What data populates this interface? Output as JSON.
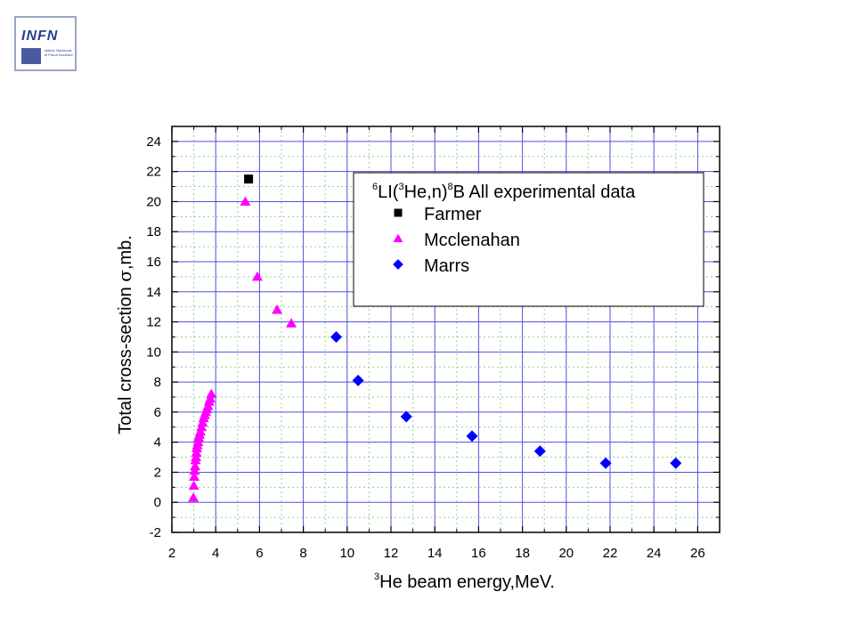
{
  "logo": {
    "word": "INFN",
    "subtitle_lines": [
      "Istituto Nazionale",
      "di Fisica Nucleare"
    ]
  },
  "chart_data": {
    "type": "scatter",
    "xlabel_sup": "3",
    "xlabel": "He beam energy,MeV.",
    "ylabel_prefix": "Total cross-section ",
    "ylabel_sigma": "σ",
    "ylabel_suffix": ",mb.",
    "xlim": [
      2,
      27
    ],
    "ylim": [
      -2,
      25
    ],
    "xticks": [
      2,
      4,
      6,
      8,
      10,
      12,
      14,
      16,
      18,
      20,
      22,
      24,
      26
    ],
    "yticks": [
      -2,
      0,
      2,
      4,
      6,
      8,
      10,
      12,
      14,
      16,
      18,
      20,
      22,
      24
    ],
    "grid": true,
    "legend_position": "top-right",
    "legend_title": {
      "sup1": "6",
      "part1": "LI(",
      "sup2": "3",
      "part2": "He,n)",
      "sup3": "8",
      "part3": "B  All experimental data"
    },
    "series": [
      {
        "name": "Farmer",
        "marker": "square",
        "color": "#000000",
        "x": [
          5.5
        ],
        "y": [
          21.5
        ]
      },
      {
        "name": "Mcclenahan",
        "marker": "triangle",
        "color": "#ff00ff",
        "x": [
          2.98,
          3.0,
          3.02,
          3.04,
          3.06,
          3.08,
          3.1,
          3.12,
          3.14,
          3.16,
          3.2,
          3.22,
          3.26,
          3.3,
          3.35,
          3.4,
          3.45,
          3.5,
          3.55,
          3.6,
          3.65,
          3.7,
          3.75,
          3.8,
          5.35,
          5.9,
          6.8,
          7.45
        ],
        "y": [
          0.3,
          1.1,
          1.7,
          2.1,
          2.4,
          2.8,
          3.0,
          3.3,
          3.6,
          3.8,
          4.0,
          4.3,
          4.5,
          4.7,
          5.0,
          5.3,
          5.6,
          5.8,
          6.0,
          6.2,
          6.4,
          6.7,
          6.9,
          7.2,
          20.0,
          15.0,
          12.8,
          11.9
        ]
      },
      {
        "name": "Marrs",
        "marker": "diamond",
        "color": "#0000ff",
        "x": [
          9.5,
          10.5,
          12.7,
          15.7,
          18.8,
          21.8,
          25.0
        ],
        "y": [
          11.0,
          8.1,
          5.7,
          4.4,
          3.4,
          2.6,
          2.6
        ]
      }
    ]
  }
}
